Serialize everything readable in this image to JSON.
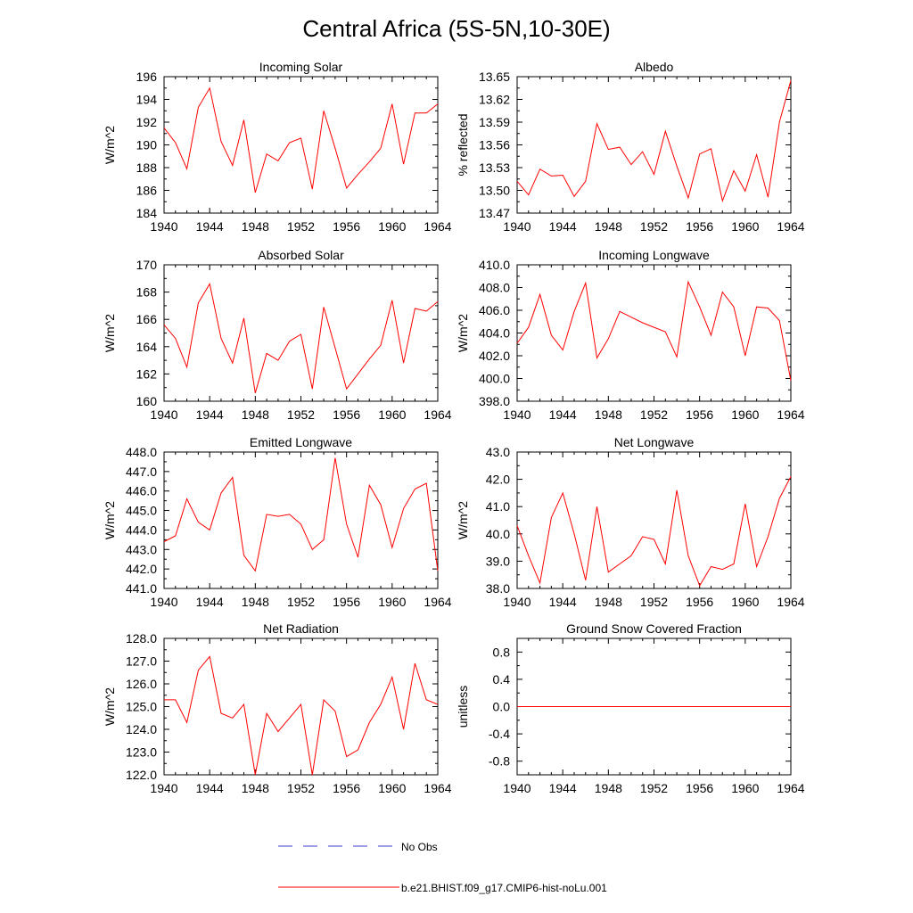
{
  "figure": {
    "title": "Central Africa (5S-5N,10-30E)",
    "legend": [
      {
        "label": "No Obs",
        "color": "#3b3bd6",
        "style": "dashed"
      },
      {
        "label": "b.e21.BHIST.f09_g17.CMIP6-hist-noLu.001",
        "color": "#ff0000",
        "style": "solid"
      }
    ]
  },
  "chart_data": [
    {
      "type": "line",
      "title": "Incoming Solar",
      "ylabel": "W/m^2",
      "xlim": [
        1940,
        1964
      ],
      "ylim": [
        184,
        196
      ],
      "x_ticks": [
        1940,
        1944,
        1948,
        1952,
        1956,
        1960,
        1964
      ],
      "y_ticks": [
        "184",
        "186",
        "188",
        "190",
        "192",
        "194",
        "196"
      ],
      "series": [
        {
          "color": "#ff0000",
          "x": [
            1940,
            1941,
            1942,
            1943,
            1944,
            1945,
            1946,
            1947,
            1948,
            1949,
            1950,
            1951,
            1952,
            1953,
            1954,
            1955,
            1956,
            1957,
            1958,
            1959,
            1960,
            1961,
            1962,
            1963,
            1964
          ],
          "values": [
            191.5,
            190.2,
            187.9,
            193.3,
            195.0,
            190.3,
            188.2,
            192.2,
            185.8,
            189.2,
            188.6,
            190.2,
            190.6,
            186.1,
            193.0,
            189.7,
            186.2,
            187.4,
            188.5,
            189.7,
            193.6,
            188.3,
            192.8,
            192.8,
            193.6
          ]
        }
      ]
    },
    {
      "type": "line",
      "title": "Albedo",
      "ylabel": "% reflected",
      "xlim": [
        1940,
        1964
      ],
      "ylim": [
        13.47,
        13.65
      ],
      "x_ticks": [
        1940,
        1944,
        1948,
        1952,
        1956,
        1960,
        1964
      ],
      "y_ticks": [
        "13.47",
        "13.50",
        "13.53",
        "13.56",
        "13.59",
        "13.62",
        "13.65"
      ],
      "series": [
        {
          "color": "#ff0000",
          "x": [
            1940,
            1941,
            1942,
            1943,
            1944,
            1945,
            1946,
            1947,
            1948,
            1949,
            1950,
            1951,
            1952,
            1953,
            1954,
            1955,
            1956,
            1957,
            1958,
            1959,
            1960,
            1961,
            1962,
            1963,
            1964
          ],
          "values": [
            13.512,
            13.494,
            13.528,
            13.519,
            13.52,
            13.492,
            13.512,
            13.588,
            13.554,
            13.557,
            13.534,
            13.551,
            13.521,
            13.578,
            13.532,
            13.49,
            13.548,
            13.555,
            13.486,
            13.526,
            13.499,
            13.547,
            13.491,
            13.59,
            13.645
          ]
        }
      ]
    },
    {
      "type": "line",
      "title": "Absorbed Solar",
      "ylabel": "W/m^2",
      "xlim": [
        1940,
        1964
      ],
      "ylim": [
        160,
        170
      ],
      "x_ticks": [
        1940,
        1944,
        1948,
        1952,
        1956,
        1960,
        1964
      ],
      "y_ticks": [
        "160",
        "162",
        "164",
        "166",
        "168",
        "170"
      ],
      "series": [
        {
          "color": "#ff0000",
          "x": [
            1940,
            1941,
            1942,
            1943,
            1944,
            1945,
            1946,
            1947,
            1948,
            1949,
            1950,
            1951,
            1952,
            1953,
            1954,
            1955,
            1956,
            1957,
            1958,
            1959,
            1960,
            1961,
            1962,
            1963,
            1964
          ],
          "values": [
            165.6,
            164.6,
            162.5,
            167.2,
            168.6,
            164.6,
            162.8,
            166.1,
            160.6,
            163.5,
            163.0,
            164.4,
            164.9,
            160.9,
            166.9,
            163.9,
            160.9,
            162.0,
            163.1,
            164.1,
            167.4,
            162.8,
            166.8,
            166.6,
            167.3
          ]
        }
      ]
    },
    {
      "type": "line",
      "title": "Incoming Longwave",
      "ylabel": "W/m^2",
      "xlim": [
        1940,
        1964
      ],
      "ylim": [
        398,
        410
      ],
      "x_ticks": [
        1940,
        1944,
        1948,
        1952,
        1956,
        1960,
        1964
      ],
      "y_ticks": [
        "398.0",
        "400.0",
        "402.0",
        "404.0",
        "406.0",
        "408.0",
        "410.0"
      ],
      "series": [
        {
          "color": "#ff0000",
          "x": [
            1940,
            1941,
            1942,
            1943,
            1944,
            1945,
            1946,
            1947,
            1948,
            1949,
            1950,
            1951,
            1952,
            1953,
            1954,
            1955,
            1956,
            1957,
            1958,
            1959,
            1960,
            1961,
            1962,
            1963,
            1964
          ],
          "values": [
            403.1,
            404.5,
            407.4,
            403.8,
            402.5,
            405.9,
            408.4,
            401.8,
            403.5,
            405.9,
            405.4,
            404.9,
            404.5,
            404.1,
            401.9,
            408.5,
            406.3,
            403.8,
            407.6,
            406.3,
            402.0,
            406.3,
            406.2,
            405.1,
            399.8
          ]
        }
      ]
    },
    {
      "type": "line",
      "title": "Emitted Longwave",
      "ylabel": "W/m^2",
      "xlim": [
        1940,
        1964
      ],
      "ylim": [
        441,
        448
      ],
      "x_ticks": [
        1940,
        1944,
        1948,
        1952,
        1956,
        1960,
        1964
      ],
      "y_ticks": [
        "441.0",
        "442.0",
        "443.0",
        "444.0",
        "445.0",
        "446.0",
        "447.0",
        "448.0"
      ],
      "series": [
        {
          "color": "#ff0000",
          "x": [
            1940,
            1941,
            1942,
            1943,
            1944,
            1945,
            1946,
            1947,
            1948,
            1949,
            1950,
            1951,
            1952,
            1953,
            1954,
            1955,
            1956,
            1957,
            1958,
            1959,
            1960,
            1961,
            1962,
            1963,
            1964
          ],
          "values": [
            443.4,
            443.7,
            445.6,
            444.4,
            444.0,
            445.9,
            446.7,
            442.7,
            441.9,
            444.8,
            444.7,
            444.8,
            444.3,
            443.0,
            443.5,
            447.7,
            444.3,
            442.6,
            446.3,
            445.3,
            443.1,
            445.1,
            446.1,
            446.4,
            441.9
          ]
        }
      ]
    },
    {
      "type": "line",
      "title": "Net Longwave",
      "ylabel": "W/m^2",
      "xlim": [
        1940,
        1964
      ],
      "ylim": [
        38,
        43
      ],
      "x_ticks": [
        1940,
        1944,
        1948,
        1952,
        1956,
        1960,
        1964
      ],
      "y_ticks": [
        "38.0",
        "39.0",
        "40.0",
        "41.0",
        "42.0",
        "43.0"
      ],
      "series": [
        {
          "color": "#ff0000",
          "x": [
            1940,
            1941,
            1942,
            1943,
            1944,
            1945,
            1946,
            1947,
            1948,
            1949,
            1950,
            1951,
            1952,
            1953,
            1954,
            1955,
            1956,
            1957,
            1958,
            1959,
            1960,
            1961,
            1962,
            1963,
            1964
          ],
          "values": [
            40.3,
            39.2,
            38.2,
            40.6,
            41.5,
            40.0,
            38.3,
            41.0,
            38.6,
            38.9,
            39.2,
            39.9,
            39.8,
            38.9,
            41.6,
            39.2,
            38.1,
            38.8,
            38.7,
            38.9,
            41.1,
            38.8,
            39.9,
            41.3,
            42.1
          ]
        }
      ]
    },
    {
      "type": "line",
      "title": "Net Radiation",
      "ylabel": "W/m^2",
      "xlim": [
        1940,
        1964
      ],
      "ylim": [
        122,
        128
      ],
      "x_ticks": [
        1940,
        1944,
        1948,
        1952,
        1956,
        1960,
        1964
      ],
      "y_ticks": [
        "122.0",
        "123.0",
        "124.0",
        "125.0",
        "126.0",
        "127.0",
        "128.0"
      ],
      "series": [
        {
          "color": "#ff0000",
          "x": [
            1940,
            1941,
            1942,
            1943,
            1944,
            1945,
            1946,
            1947,
            1948,
            1949,
            1950,
            1951,
            1952,
            1953,
            1954,
            1955,
            1956,
            1957,
            1958,
            1959,
            1960,
            1961,
            1962,
            1963,
            1964
          ],
          "values": [
            125.3,
            125.3,
            124.3,
            126.6,
            127.2,
            124.7,
            124.5,
            125.1,
            122.0,
            124.7,
            123.9,
            124.5,
            125.1,
            122.0,
            125.3,
            124.8,
            122.8,
            123.1,
            124.3,
            125.1,
            126.3,
            124.0,
            126.9,
            125.3,
            125.1
          ]
        }
      ]
    },
    {
      "type": "line",
      "title": "Ground Snow Covered Fraction",
      "ylabel": "unitless",
      "xlim": [
        1940,
        1964
      ],
      "ylim": [
        -1.0,
        1.0
      ],
      "x_ticks": [
        1940,
        1944,
        1948,
        1952,
        1956,
        1960,
        1964
      ],
      "y_ticks": [
        "-0.8",
        "-0.4",
        "0.0",
        "0.4",
        "0.8"
      ],
      "series": [
        {
          "color": "#ff0000",
          "x": [
            1940,
            1964
          ],
          "values": [
            0.0,
            0.0
          ]
        }
      ]
    }
  ]
}
